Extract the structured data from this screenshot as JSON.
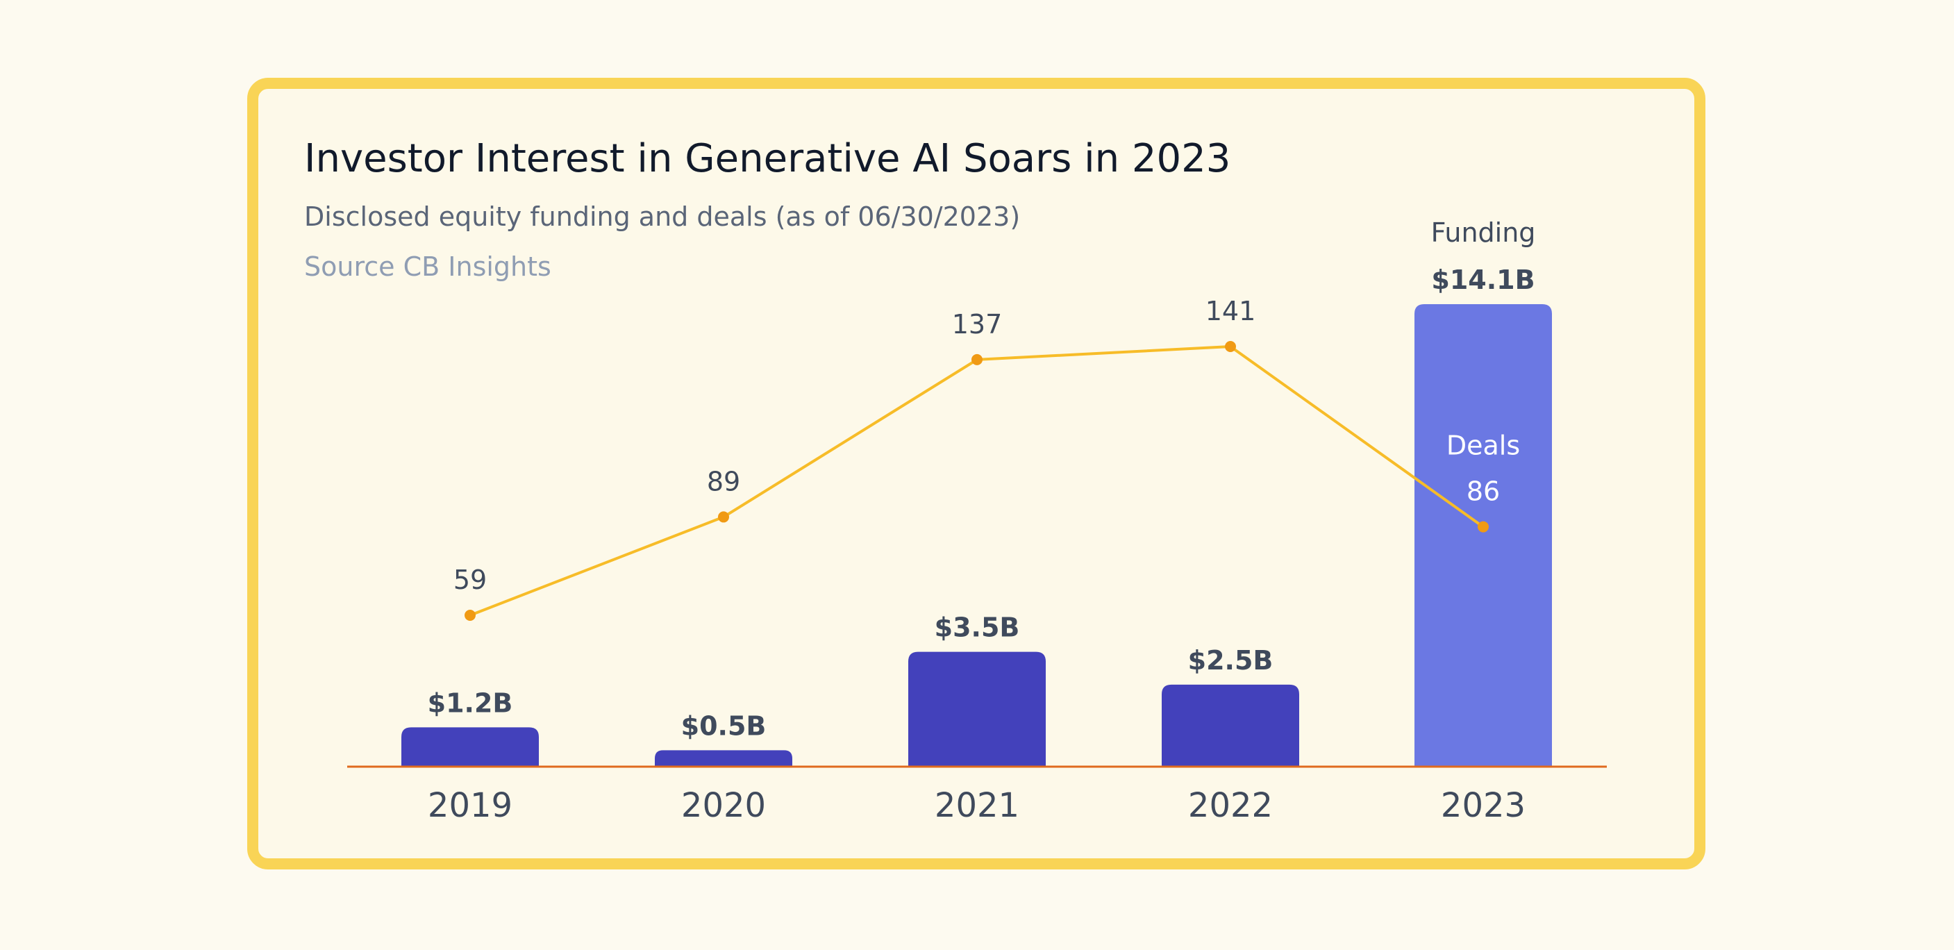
{
  "title": "Investor Interest in Generative AI Soars in 2023",
  "subtitle": "Disclosed equity funding and deals (as of 06/30/2023)",
  "source": "Source CB Insights",
  "colors": {
    "bar": "#4341bb",
    "bar_highlight": "#6b78e3",
    "line": "#f7bc28",
    "point": "#f09a14",
    "axis": "#e06a1e",
    "border": "#f9d456"
  },
  "chart_data": {
    "type": "bar",
    "categories": [
      "2019",
      "2020",
      "2021",
      "2022",
      "2023"
    ],
    "series": [
      {
        "name": "Funding",
        "type": "bar",
        "unit": "$B",
        "values": [
          1.2,
          0.5,
          3.5,
          2.5,
          14.1
        ],
        "labels": [
          "$1.2B",
          "$0.5B",
          "$3.5B",
          "$2.5B",
          "$14.1B"
        ]
      },
      {
        "name": "Deals",
        "type": "line",
        "values": [
          59,
          89,
          137,
          141,
          86
        ],
        "labels": [
          "59",
          "89",
          "137",
          "141",
          "86"
        ]
      }
    ],
    "title": "Investor Interest in Generative AI Soars in 2023",
    "subtitle": "Disclosed equity funding and deals (as of 06/30/2023)",
    "xlabel": "",
    "ylabel": "",
    "highlight_category": "2023",
    "grid": false
  }
}
